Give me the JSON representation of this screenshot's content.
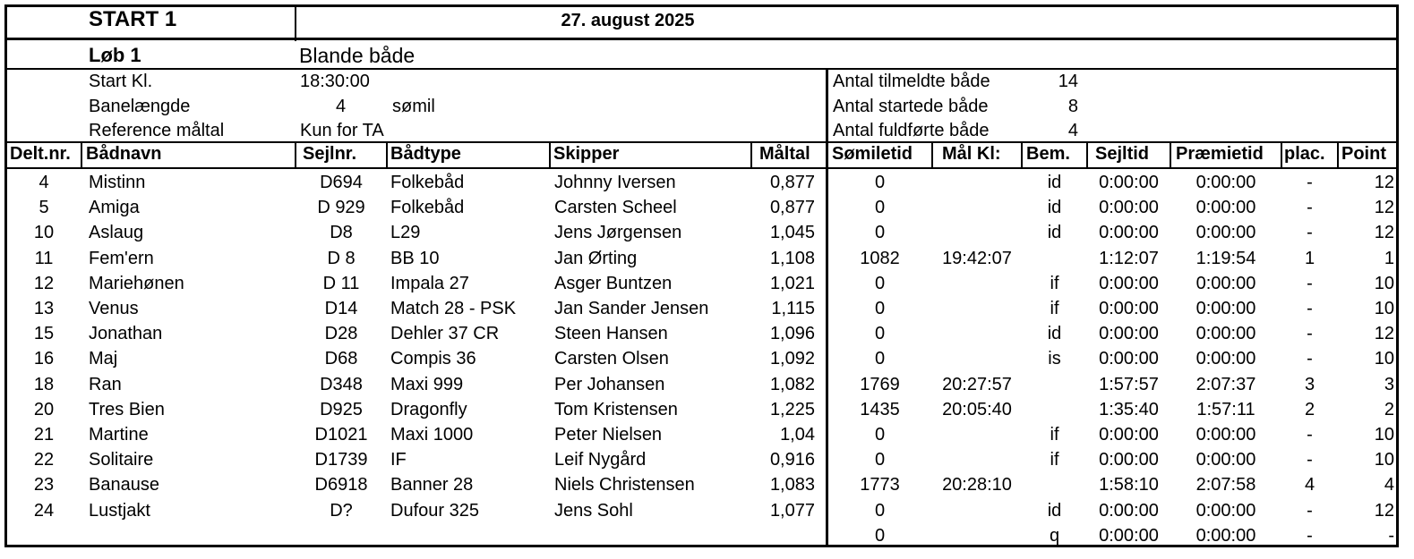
{
  "header": {
    "start": "START 1",
    "date": "27. august 2025",
    "loeb": "Løb 1",
    "klasse": "Blande både"
  },
  "info": {
    "start_kl_label": "Start Kl.",
    "start_kl_value": "18:30:00",
    "banelaengde_label": "Banelængde",
    "banelaengde_value": "4",
    "banelaengde_unit": "sømil",
    "ref_label": "Reference måltal",
    "ref_value": "Kun for TA",
    "tilmeldte_label": "Antal tilmeldte både",
    "tilmeldte_value": "14",
    "startede_label": "Antal startede både",
    "startede_value": "8",
    "fuldfoerte_label": "Antal fuldførte både",
    "fuldfoerte_value": "4"
  },
  "columns": {
    "deltnr": "Delt.nr.",
    "baadnavn": "Bådnavn",
    "sejlnr": "Sejlnr.",
    "baadtype": "Bådtype",
    "skipper": "Skipper",
    "maaltal": "Måltal",
    "somiletid": "Sømiletid",
    "maalkl": "Mål Kl:",
    "bem": "Bem.",
    "sejltid": "Sejltid",
    "praemietid": "Præmietid",
    "plac": "plac.",
    "point": "Point"
  },
  "rows": [
    {
      "nr": "4",
      "navn": "Mistinn",
      "sejlnr": "D694",
      "type": "Folkebåd",
      "skipper": "Johnny Iversen",
      "maal": "0,877",
      "somile": "0",
      "maalkl": "",
      "bem": "id",
      "sejltid": "0:00:00",
      "praemie": "0:00:00",
      "plac": "-",
      "point": "12"
    },
    {
      "nr": "5",
      "navn": "Amiga",
      "sejlnr": "D 929",
      "type": "Folkebåd",
      "skipper": "Carsten Scheel",
      "maal": "0,877",
      "somile": "0",
      "maalkl": "",
      "bem": "id",
      "sejltid": "0:00:00",
      "praemie": "0:00:00",
      "plac": "-",
      "point": "12"
    },
    {
      "nr": "10",
      "navn": "Aslaug",
      "sejlnr": "D8",
      "type": "L29",
      "skipper": "Jens Jørgensen",
      "maal": "1,045",
      "somile": "0",
      "maalkl": "",
      "bem": "id",
      "sejltid": "0:00:00",
      "praemie": "0:00:00",
      "plac": "-",
      "point": "12"
    },
    {
      "nr": "11",
      "navn": "Fem'ern",
      "sejlnr": "D 8",
      "type": "BB 10",
      "skipper": "Jan Ørting",
      "maal": "1,108",
      "somile": "1082",
      "maalkl": "19:42:07",
      "bem": "",
      "sejltid": "1:12:07",
      "praemie": "1:19:54",
      "plac": "1",
      "point": "1"
    },
    {
      "nr": "12",
      "navn": "Mariehønen",
      "sejlnr": "D 11",
      "type": "Impala 27",
      "skipper": "Asger Buntzen",
      "maal": "1,021",
      "somile": "0",
      "maalkl": "",
      "bem": "if",
      "sejltid": "0:00:00",
      "praemie": "0:00:00",
      "plac": "-",
      "point": "10"
    },
    {
      "nr": "13",
      "navn": "Venus",
      "sejlnr": "D14",
      "type": "Match 28 - PSK",
      "skipper": "Jan Sander Jensen",
      "maal": "1,115",
      "somile": "0",
      "maalkl": "",
      "bem": "if",
      "sejltid": "0:00:00",
      "praemie": "0:00:00",
      "plac": "-",
      "point": "10"
    },
    {
      "nr": "15",
      "navn": "Jonathan",
      "sejlnr": "D28",
      "type": "Dehler 37 CR",
      "skipper": "Steen Hansen",
      "maal": "1,096",
      "somile": "0",
      "maalkl": "",
      "bem": "id",
      "sejltid": "0:00:00",
      "praemie": "0:00:00",
      "plac": "-",
      "point": "12"
    },
    {
      "nr": "16",
      "navn": "Maj",
      "sejlnr": "D68",
      "type": "Compis 36",
      "skipper": "Carsten Olsen",
      "maal": "1,092",
      "somile": "0",
      "maalkl": "",
      "bem": "is",
      "sejltid": "0:00:00",
      "praemie": "0:00:00",
      "plac": "-",
      "point": "10"
    },
    {
      "nr": "18",
      "navn": "Ran",
      "sejlnr": "D348",
      "type": "Maxi 999",
      "skipper": "Per Johansen",
      "maal": "1,082",
      "somile": "1769",
      "maalkl": "20:27:57",
      "bem": "",
      "sejltid": "1:57:57",
      "praemie": "2:07:37",
      "plac": "3",
      "point": "3"
    },
    {
      "nr": "20",
      "navn": "Tres Bien",
      "sejlnr": "D925",
      "type": "Dragonfly",
      "skipper": "Tom Kristensen",
      "maal": "1,225",
      "somile": "1435",
      "maalkl": "20:05:40",
      "bem": "",
      "sejltid": "1:35:40",
      "praemie": "1:57:11",
      "plac": "2",
      "point": "2"
    },
    {
      "nr": "21",
      "navn": "Martine",
      "sejlnr": "D1021",
      "type": "Maxi 1000",
      "skipper": "Peter Nielsen",
      "maal": "1,04",
      "somile": "0",
      "maalkl": "",
      "bem": "if",
      "sejltid": "0:00:00",
      "praemie": "0:00:00",
      "plac": "-",
      "point": "10"
    },
    {
      "nr": "22",
      "navn": "Solitaire",
      "sejlnr": "D1739",
      "type": "IF",
      "skipper": "Leif Nygård",
      "maal": "0,916",
      "somile": "0",
      "maalkl": "",
      "bem": "if",
      "sejltid": "0:00:00",
      "praemie": "0:00:00",
      "plac": "-",
      "point": "10"
    },
    {
      "nr": "23",
      "navn": "Banause",
      "sejlnr": "D6918",
      "type": "Banner 28",
      "skipper": "Niels Christensen",
      "maal": "1,083",
      "somile": "1773",
      "maalkl": "20:28:10",
      "bem": "",
      "sejltid": "1:58:10",
      "praemie": "2:07:58",
      "plac": "4",
      "point": "4"
    },
    {
      "nr": "24",
      "navn": "Lustjakt",
      "sejlnr": "D?",
      "type": "Dufour 325",
      "skipper": "Jens Sohl",
      "maal": "1,077",
      "somile": "0",
      "maalkl": "",
      "bem": "id",
      "sejltid": "0:00:00",
      "praemie": "0:00:00",
      "plac": "-",
      "point": "12"
    },
    {
      "nr": "",
      "navn": "",
      "sejlnr": "",
      "type": "",
      "skipper": "",
      "maal": "",
      "somile": "0",
      "maalkl": "",
      "bem": "q",
      "sejltid": "0:00:00",
      "praemie": "0:00:00",
      "plac": "-",
      "point": "-"
    }
  ]
}
